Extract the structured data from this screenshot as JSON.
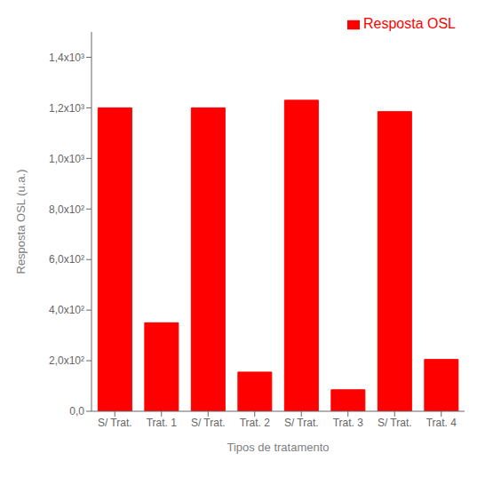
{
  "chart_data": {
    "type": "bar",
    "categories": [
      "S/ Trat.",
      "Trat. 1",
      "S/ Trat.",
      "Trat. 2",
      "S/ Trat.",
      "Trat. 3",
      "S/ Trat.",
      "Trat. 4"
    ],
    "series": [
      {
        "name": "Resposta OSL",
        "color": "#FF0000",
        "values": [
          1200,
          350,
          1200,
          155,
          1230,
          85,
          1185,
          205
        ]
      }
    ],
    "xlabel": "Tipos de tratamento",
    "ylabel": "Resposta OSL (u.a.)",
    "ylim": [
      0,
      1500
    ],
    "yticks": [
      {
        "value": 0,
        "label": "0,0"
      },
      {
        "value": 200,
        "label": "2,0x10²"
      },
      {
        "value": 400,
        "label": "4,0x10²"
      },
      {
        "value": 600,
        "label": "6,0x10²"
      },
      {
        "value": 800,
        "label": "8,0x10²"
      },
      {
        "value": 1000,
        "label": "1,0x10³"
      },
      {
        "value": 1200,
        "label": "1,2x10³"
      },
      {
        "value": 1400,
        "label": "1,4x10³"
      }
    ],
    "legend": "upper right"
  }
}
